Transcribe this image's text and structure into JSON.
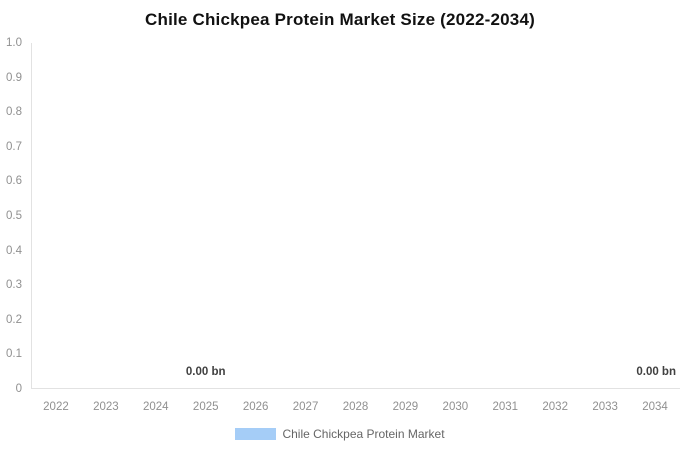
{
  "colors": {
    "series_fill": "#a5cdf7",
    "axis_line": "#e2e2e2",
    "tick_text": "#909090",
    "title_text": "#111111",
    "data_label_text": "#404040",
    "legend_text": "#666666",
    "background": "#ffffff"
  },
  "chart_data": {
    "type": "bar",
    "title": "Chile Chickpea Protein Market Size (2022-2034)",
    "xlabel": "",
    "ylabel": "",
    "categories": [
      "2022",
      "2023",
      "2024",
      "2025",
      "2026",
      "2027",
      "2028",
      "2029",
      "2030",
      "2031",
      "2032",
      "2033",
      "2034"
    ],
    "series": [
      {
        "name": "Chile Chickpea Protein Market",
        "color": "#a5cdf7",
        "values": [
          0,
          0,
          0,
          0,
          0,
          0,
          0,
          0,
          0,
          0,
          0,
          0,
          0
        ]
      }
    ],
    "unit": "bn",
    "ylim": [
      0,
      1.0
    ],
    "yticks": [
      {
        "label": "1.0",
        "value": 1.0
      },
      {
        "label": "0.9",
        "value": 0.9
      },
      {
        "label": "0.8",
        "value": 0.8
      },
      {
        "label": "0.7",
        "value": 0.7
      },
      {
        "label": "0.6",
        "value": 0.6
      },
      {
        "label": "0.5",
        "value": 0.5
      },
      {
        "label": "0.4",
        "value": 0.4
      },
      {
        "label": "0.3",
        "value": 0.3
      },
      {
        "label": "0.2",
        "value": 0.2
      },
      {
        "label": "0.1",
        "value": 0.1
      },
      {
        "label": "0",
        "value": 0.0
      }
    ],
    "data_labels": [
      {
        "text": "0.00 bn",
        "category": "2025"
      },
      {
        "text": "0.00 bn",
        "category": "2034"
      }
    ],
    "grid": false,
    "legend_position": "bottom"
  }
}
